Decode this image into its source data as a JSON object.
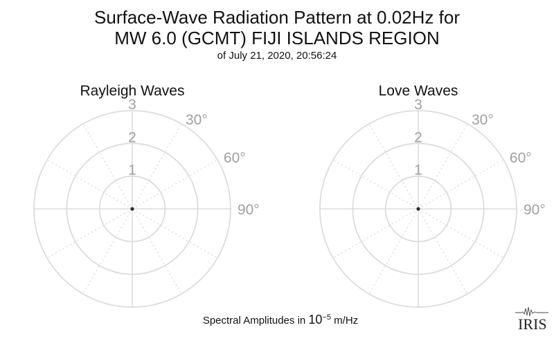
{
  "title_line1": "Surface-Wave Radiation Pattern at 0.02Hz for",
  "title_line2": "MW 6.0 (GCMT) FIJI ISLANDS REGION",
  "subtitle": "of July 21, 2020, 20:56:24",
  "footer": {
    "prefix": "Spectral Amplitudes in ",
    "base": "10",
    "exponent": "−5",
    "suffix": " m/Hz"
  },
  "logo_text": "IRIS",
  "chart_data": [
    {
      "type": "polar",
      "title": "Rayleigh Waves",
      "radial_ticks": [
        "1",
        "2",
        "3"
      ],
      "radial_range": [
        0,
        3
      ],
      "angle_ticks": [
        "30°",
        "60°",
        "90°"
      ],
      "grid": true,
      "values": [
        0
      ]
    },
    {
      "type": "polar",
      "title": "Love Waves",
      "radial_ticks": [
        "1",
        "2",
        "3"
      ],
      "radial_range": [
        0,
        3
      ],
      "angle_ticks": [
        "30°",
        "60°",
        "90°"
      ],
      "grid": true,
      "values": [
        0
      ]
    }
  ],
  "colors": {
    "grid": "#dcdcdc",
    "tick_label": "#a0a0a0",
    "center_dot": "#3a2a20"
  }
}
